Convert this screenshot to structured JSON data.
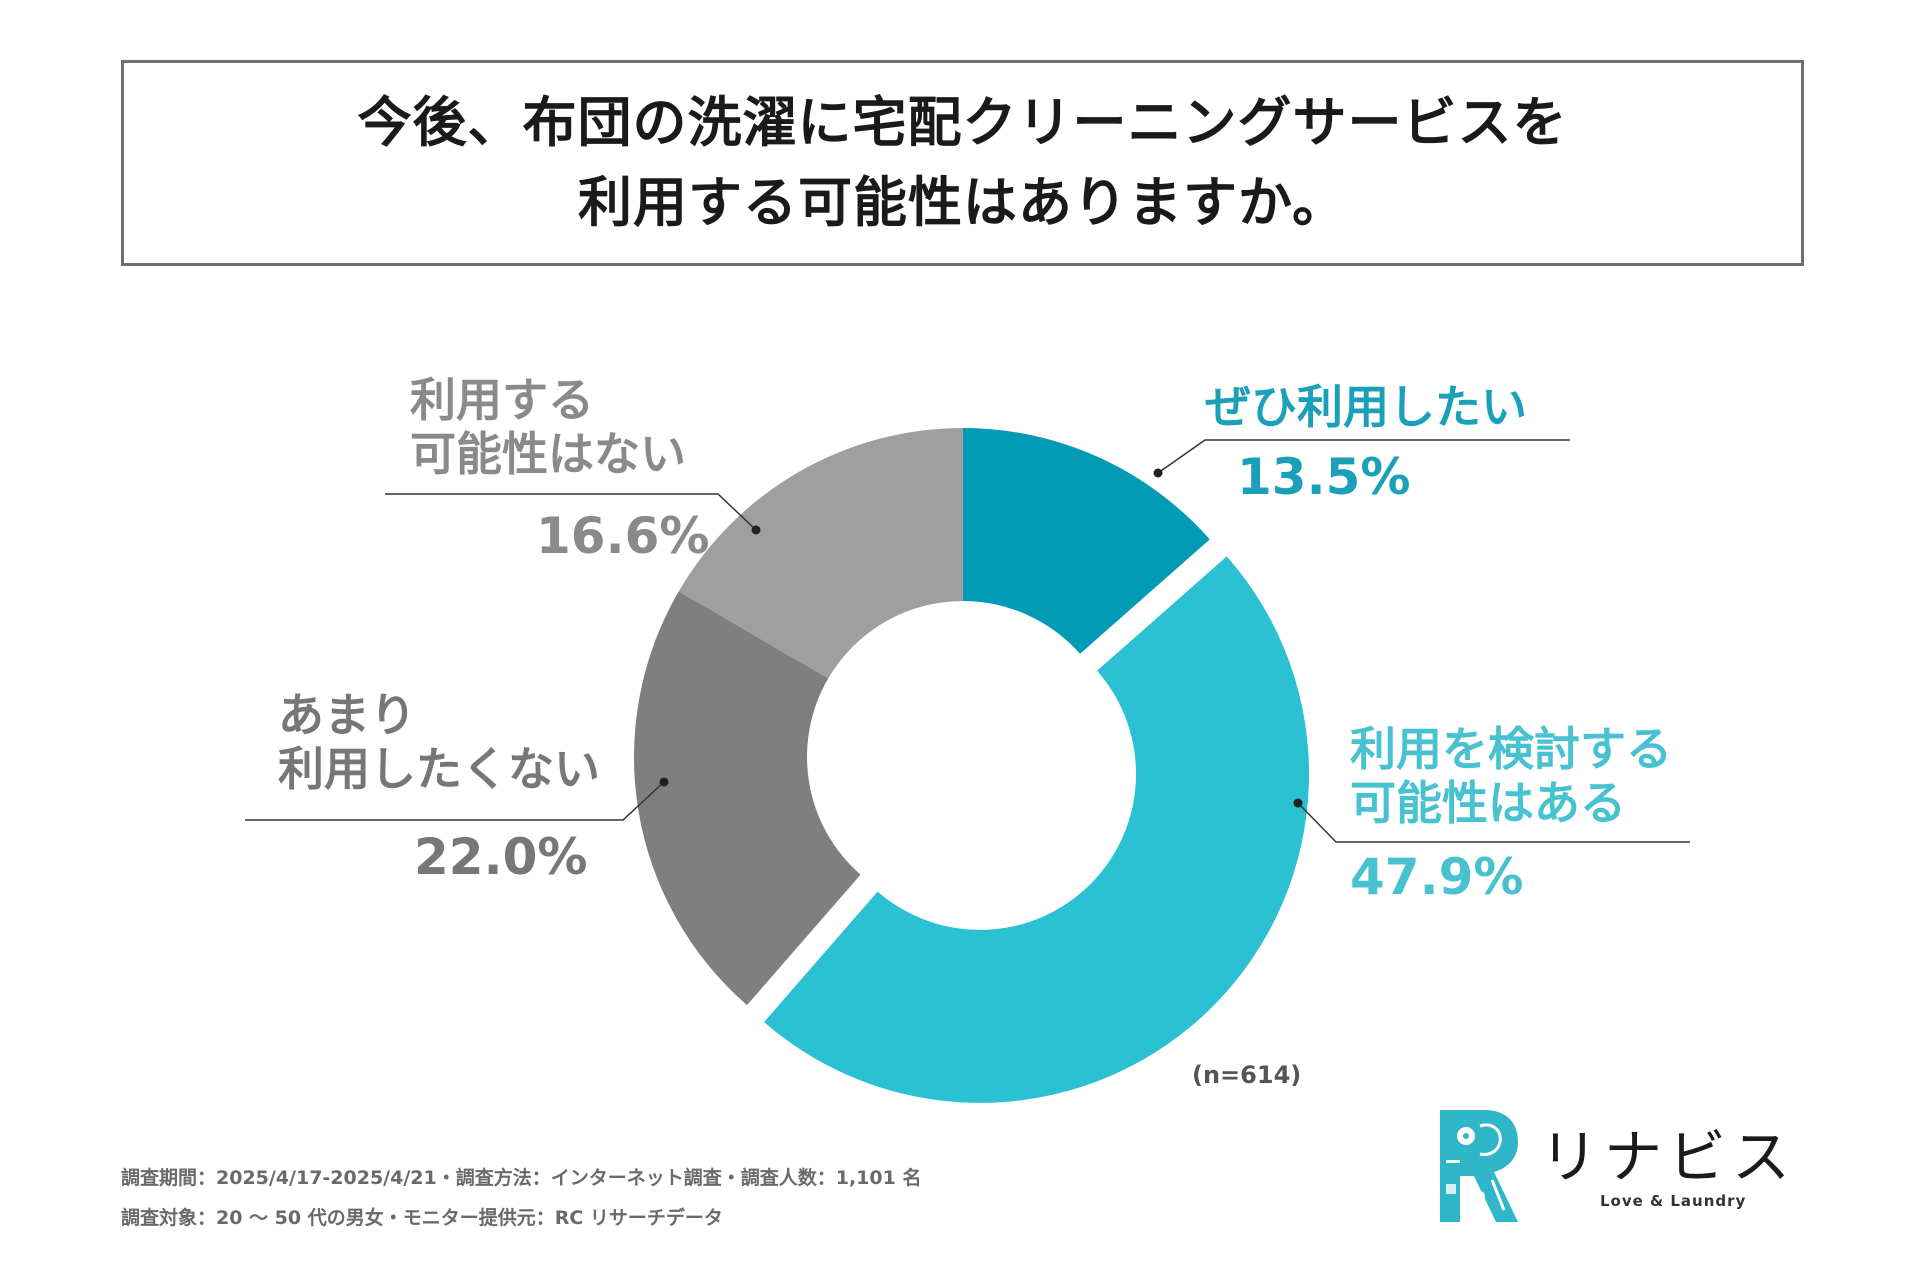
{
  "title": {
    "line1": "今後、布団の洗濯に宅配クリーニングサービスを",
    "line2": "利用する可能性はありますか。"
  },
  "chart_data": {
    "type": "pie",
    "donut": true,
    "start_angle_deg": 0,
    "direction": "clockwise",
    "sample_size": "(n=614)",
    "slices": [
      {
        "label_lines": [
          "ぜひ利用したい"
        ],
        "value": 13.5,
        "value_label": "13.5%",
        "color": "#019bb6",
        "label_color": "#1ba0b9"
      },
      {
        "label_lines": [
          "利用を検討する",
          "可能性はある"
        ],
        "value": 47.9,
        "value_label": "47.9%",
        "color": "#2bc1d3",
        "label_color": "#48c1d0"
      },
      {
        "label_lines": [
          "あまり",
          "利用したくない"
        ],
        "value": 22.0,
        "value_label": "22.0%",
        "color": "#7f7f7f",
        "label_color": "#777777"
      },
      {
        "label_lines": [
          "利用する",
          "可能性はない"
        ],
        "value": 16.6,
        "value_label": "16.6%",
        "color": "#9f9f9f",
        "label_color": "#8a8a8a"
      }
    ]
  },
  "footnotes": [
    "調査期間：2025/4/17-2025/4/21・調査方法：インターネット調査・調査人数：1,101 名",
    "調査対象：20 〜 50 代の男女・モニター提供元：RC リサーチデータ"
  ],
  "logo": {
    "name": "リナビス",
    "tagline": "Love & Laundry",
    "color": "#2fb7c9"
  }
}
